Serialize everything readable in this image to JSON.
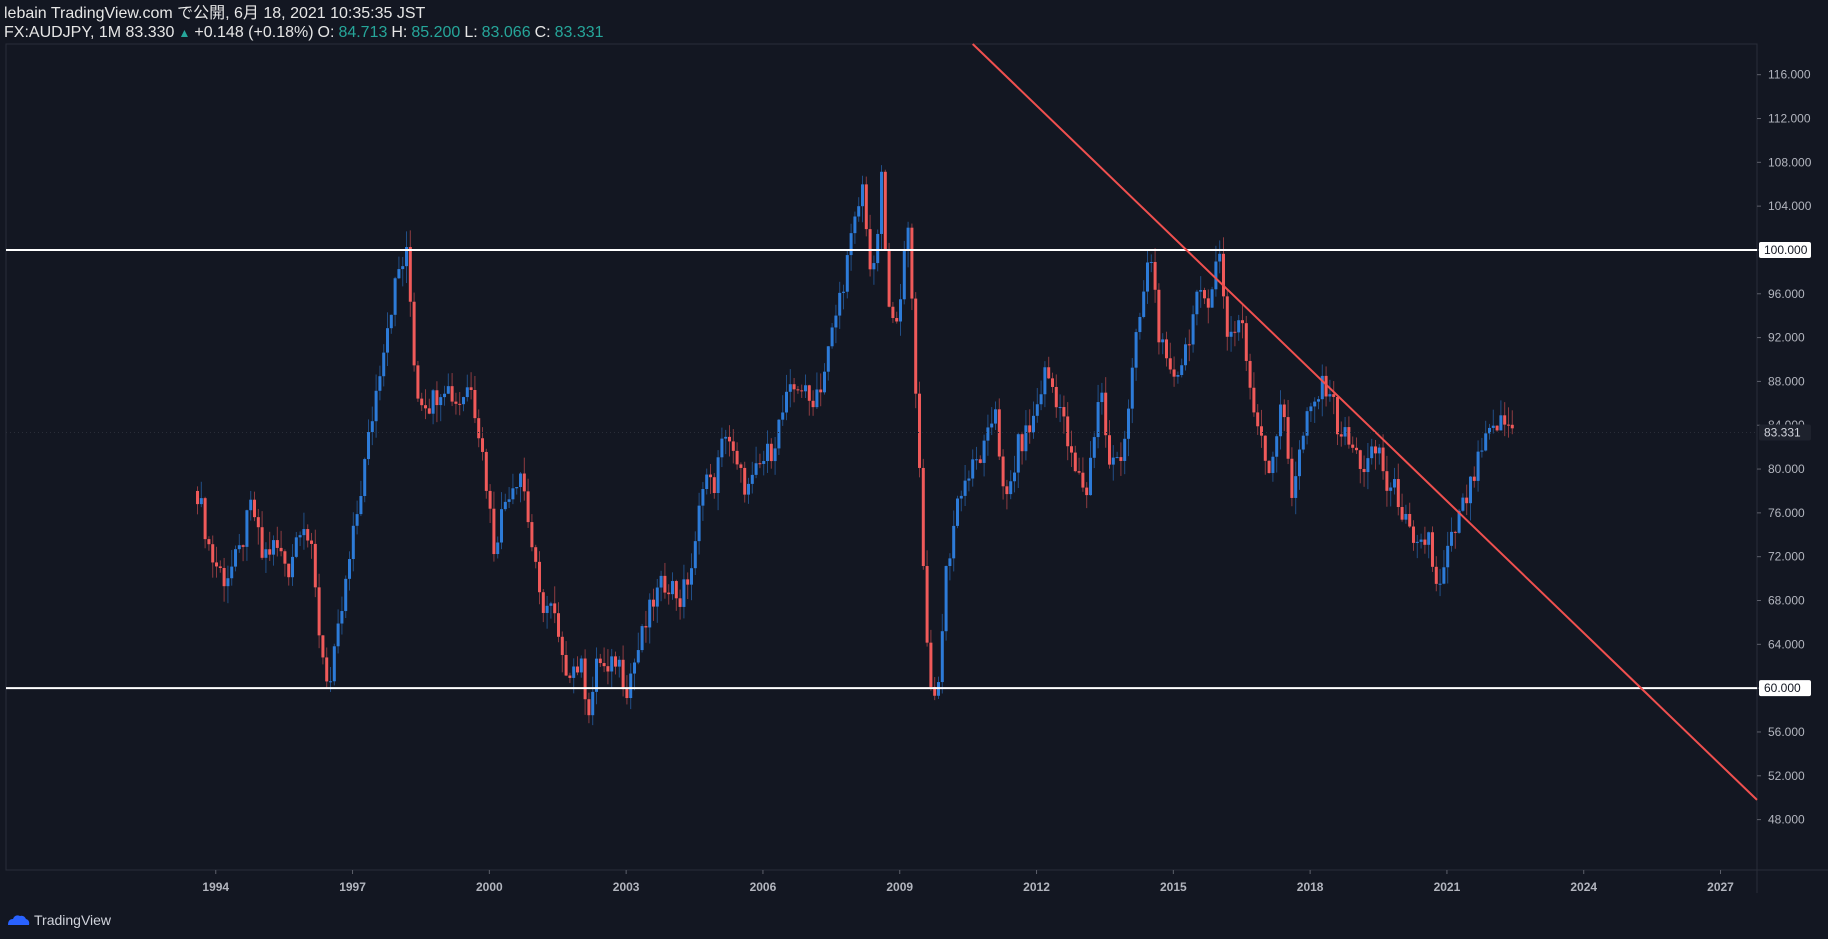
{
  "header": {
    "line1": "lebain TradingView.com で公開, 6月 18, 2021 10:35:35 JST",
    "symbol": "FX:AUDJPY, 1M 83.330",
    "change_arrow": "▲",
    "change": "+0.148 (+0.18%)",
    "o_label": "O:",
    "o_value": "84.713",
    "h_label": "H:",
    "h_value": "85.200",
    "l_label": "L:",
    "l_value": "83.066",
    "c_label": "C:",
    "c_value": "83.331"
  },
  "footer": {
    "brand": "TradingView"
  },
  "colors": {
    "background": "#131722",
    "up": "#2d7bd8",
    "down": "#f05a5a",
    "trendline": "#f0504f",
    "level": "#ffffff"
  },
  "chart_data": {
    "type": "line",
    "title": "",
    "xlabel": "",
    "ylabel": "",
    "x_ticks": [
      "1994",
      "1997",
      "2000",
      "2003",
      "2006",
      "2009",
      "2012",
      "2015",
      "2018",
      "2021",
      "2024",
      "2027"
    ],
    "y_ticks": [
      "48.000",
      "52.000",
      "56.000",
      "60.000",
      "64.000",
      "68.000",
      "72.000",
      "76.000",
      "80.000",
      "84.000",
      "88.000",
      "92.000",
      "96.000",
      "100.000",
      "104.000",
      "108.000",
      "112.000",
      "116.000"
    ],
    "xlim": [
      1989.4,
      2027.8
    ],
    "ylim": [
      43.4,
      118.8
    ],
    "grid": false,
    "series": [
      {
        "values": [
          [
            1993.6,
            78
          ],
          [
            1993.9,
            72
          ],
          [
            1994.2,
            70
          ],
          [
            1994.5,
            72
          ],
          [
            1994.8,
            77
          ],
          [
            1995.0,
            72
          ],
          [
            1995.3,
            73
          ],
          [
            1995.6,
            71
          ],
          [
            1995.9,
            76
          ],
          [
            1996.1,
            72
          ],
          [
            1996.3,
            64
          ],
          [
            1996.5,
            60
          ],
          [
            1996.8,
            68
          ],
          [
            1997.1,
            76
          ],
          [
            1997.4,
            84
          ],
          [
            1997.7,
            92
          ],
          [
            1998.0,
            98
          ],
          [
            1998.2,
            99.5
          ],
          [
            1998.4,
            87
          ],
          [
            1998.7,
            86
          ],
          [
            1999.0,
            88
          ],
          [
            1999.3,
            86
          ],
          [
            1999.6,
            88
          ],
          [
            1999.9,
            80
          ],
          [
            2000.1,
            73
          ],
          [
            2000.4,
            78
          ],
          [
            2000.7,
            80
          ],
          [
            2000.9,
            74
          ],
          [
            2001.1,
            68
          ],
          [
            2001.4,
            67
          ],
          [
            2001.6,
            62
          ],
          [
            2001.8,
            62
          ],
          [
            2002.0,
            62
          ],
          [
            2002.2,
            58
          ],
          [
            2002.4,
            63
          ],
          [
            2002.6,
            61
          ],
          [
            2002.8,
            63
          ],
          [
            2003.0,
            60
          ],
          [
            2003.3,
            64
          ],
          [
            2003.6,
            68
          ],
          [
            2003.9,
            70
          ],
          [
            2004.2,
            68
          ],
          [
            2004.5,
            72
          ],
          [
            2004.7,
            80
          ],
          [
            2004.9,
            78
          ],
          [
            2005.2,
            84
          ],
          [
            2005.4,
            80
          ],
          [
            2005.7,
            78
          ],
          [
            2005.9,
            80
          ],
          [
            2006.2,
            82
          ],
          [
            2006.5,
            86
          ],
          [
            2006.8,
            88
          ],
          [
            2007.0,
            86
          ],
          [
            2007.3,
            88
          ],
          [
            2007.6,
            94
          ],
          [
            2007.9,
            100
          ],
          [
            2008.2,
            106
          ],
          [
            2008.4,
            96
          ],
          [
            2008.6,
            106
          ],
          [
            2008.8,
            92
          ],
          [
            2009.0,
            96
          ],
          [
            2009.2,
            102
          ],
          [
            2009.4,
            83
          ],
          [
            2009.6,
            64
          ],
          [
            2009.8,
            57
          ],
          [
            2010.0,
            70
          ],
          [
            2010.3,
            78
          ],
          [
            2010.6,
            80
          ],
          [
            2010.9,
            82
          ],
          [
            2011.1,
            86
          ],
          [
            2011.3,
            76
          ],
          [
            2011.6,
            82
          ],
          [
            2011.9,
            84
          ],
          [
            2012.2,
            89
          ],
          [
            2012.5,
            86
          ],
          [
            2012.8,
            80
          ],
          [
            2013.1,
            78
          ],
          [
            2013.4,
            88
          ],
          [
            2013.6,
            80
          ],
          [
            2013.9,
            82
          ],
          [
            2014.2,
            92
          ],
          [
            2014.5,
            100
          ],
          [
            2014.7,
            92
          ],
          [
            2014.9,
            88
          ],
          [
            2015.2,
            90
          ],
          [
            2015.5,
            95
          ],
          [
            2015.8,
            96
          ],
          [
            2016.0,
            100
          ],
          [
            2016.2,
            92
          ],
          [
            2016.5,
            94
          ],
          [
            2016.7,
            86
          ],
          [
            2016.9,
            84
          ],
          [
            2017.1,
            80
          ],
          [
            2017.4,
            86
          ],
          [
            2017.6,
            78
          ],
          [
            2017.9,
            84
          ],
          [
            2018.2,
            87
          ],
          [
            2018.4,
            88
          ],
          [
            2018.6,
            84
          ],
          [
            2018.9,
            82
          ],
          [
            2019.2,
            80
          ],
          [
            2019.5,
            82
          ],
          [
            2019.7,
            78
          ],
          [
            2019.9,
            78
          ],
          [
            2020.1,
            75
          ],
          [
            2020.3,
            72
          ],
          [
            2020.6,
            74
          ],
          [
            2020.8,
            68
          ],
          [
            2021.0,
            72
          ],
          [
            2021.3,
            76
          ],
          [
            2021.5,
            78
          ],
          [
            2021.8,
            82
          ],
          [
            2022.1,
            84
          ],
          [
            2022.3,
            84.2
          ],
          [
            2022.5,
            83.3
          ]
        ]
      }
    ],
    "horizontal_lines": [
      100,
      60
    ],
    "trendline": [
      [
        2010.6,
        118.8
      ],
      [
        2027.8,
        49.8
      ]
    ],
    "last_price": "83.331",
    "level_labels": [
      "100.000",
      "60.000"
    ]
  }
}
